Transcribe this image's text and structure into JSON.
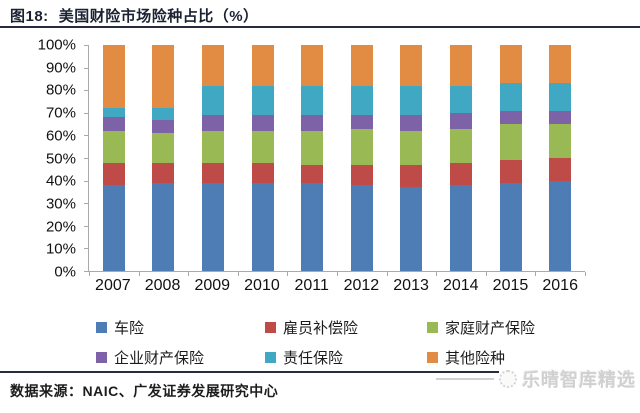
{
  "header": {
    "figure_label": "图18:",
    "title": "美国财险市场险种占比（%）"
  },
  "chart_data": {
    "type": "bar",
    "stacked": true,
    "percent_stacked": true,
    "title": "美国财险市场险种占比（%）",
    "xlabel": "",
    "ylabel": "",
    "ylim": [
      0,
      100
    ],
    "grid": false,
    "legend_position": "bottom",
    "ytick_labels": [
      "0%",
      "10%",
      "20%",
      "30%",
      "40%",
      "50%",
      "60%",
      "70%",
      "80%",
      "90%",
      "100%"
    ],
    "categories": [
      "2007",
      "2008",
      "2009",
      "2010",
      "2011",
      "2012",
      "2013",
      "2014",
      "2015",
      "2016"
    ],
    "series": [
      {
        "name": "车险",
        "color": "#4e7cb5",
        "values": [
          38,
          39,
          39,
          39,
          39,
          38,
          37,
          38,
          39,
          40
        ]
      },
      {
        "name": "雇员补偿险",
        "color": "#bf4b48",
        "values": [
          10,
          9,
          9,
          9,
          8,
          9,
          10,
          10,
          10,
          10
        ]
      },
      {
        "name": "家庭财产保险",
        "color": "#98b954",
        "values": [
          14,
          13,
          14,
          14,
          15,
          16,
          15,
          15,
          16,
          15
        ]
      },
      {
        "name": "企业财产保险",
        "color": "#7d62a8",
        "values": [
          6,
          6,
          7,
          7,
          7,
          6,
          7,
          7,
          6,
          6
        ]
      },
      {
        "name": "责任保险",
        "color": "#40a8c2",
        "values": [
          4,
          5,
          13,
          13,
          13,
          13,
          13,
          12,
          12,
          12
        ]
      },
      {
        "name": "其他险种",
        "color": "#e28b42",
        "values": [
          28,
          28,
          18,
          18,
          18,
          18,
          18,
          18,
          17,
          17
        ]
      }
    ]
  },
  "footer": {
    "source": "数据来源：NAIC、广发证券发展研究中心",
    "watermark": "乐晴智库精选"
  }
}
